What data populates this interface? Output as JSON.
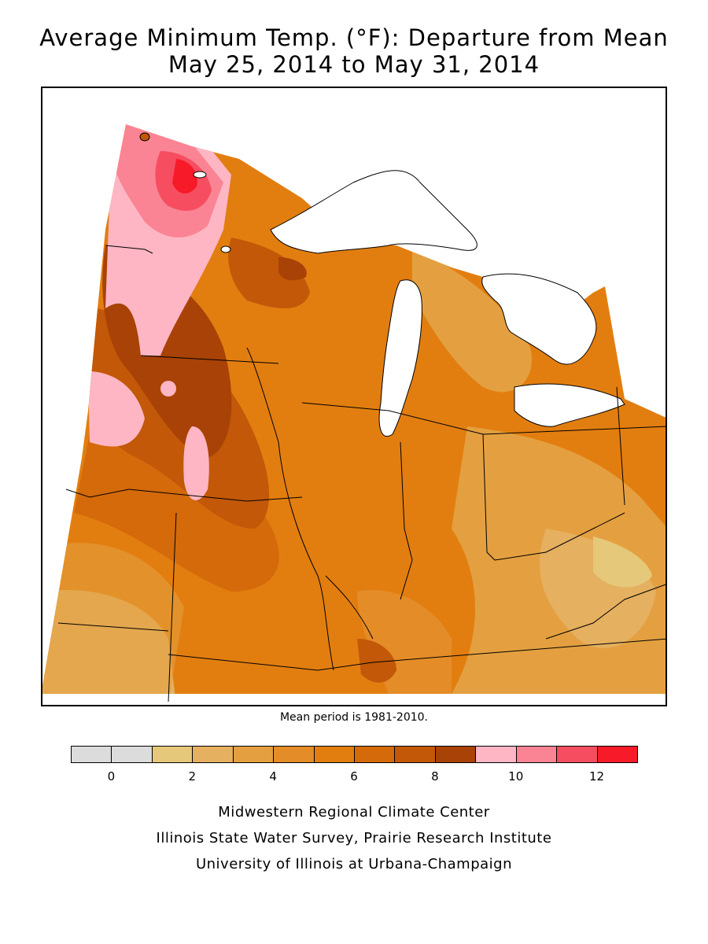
{
  "title": {
    "line1": "Average Minimum Temp. (°F): Departure from Mean",
    "line2": "May 25, 2014 to May 31, 2014"
  },
  "mean_note": "Mean period is 1981-2010.",
  "legend": {
    "bins": [
      {
        "from": -1,
        "to": 0,
        "color": "#dcdcdc"
      },
      {
        "from": 0,
        "to": 1,
        "color": "#dcdcdc"
      },
      {
        "from": 1,
        "to": 2,
        "color": "#e6c87a"
      },
      {
        "from": 2,
        "to": 3,
        "color": "#e5b060"
      },
      {
        "from": 3,
        "to": 4,
        "color": "#e4a040"
      },
      {
        "from": 4,
        "to": 5,
        "color": "#e48c28"
      },
      {
        "from": 5,
        "to": 6,
        "color": "#e27e10"
      },
      {
        "from": 6,
        "to": 7,
        "color": "#d46a0a"
      },
      {
        "from": 7,
        "to": 8,
        "color": "#c25808"
      },
      {
        "from": 8,
        "to": 9,
        "color": "#a84206"
      },
      {
        "from": 9,
        "to": 10,
        "color": "#ffb6c4"
      },
      {
        "from": 10,
        "to": 11,
        "color": "#fa8494"
      },
      {
        "from": 11,
        "to": 12,
        "color": "#f64e60"
      },
      {
        "from": 12,
        "to": 13,
        "color": "#f71a28"
      }
    ],
    "tick_labels": [
      "0",
      "2",
      "4",
      "6",
      "8",
      "10",
      "12"
    ]
  },
  "credits": [
    "Midwestern Regional Climate Center",
    "Illinois State Water Survey, Prairie Research Institute",
    "University of Illinois at Urbana-Champaign"
  ]
}
